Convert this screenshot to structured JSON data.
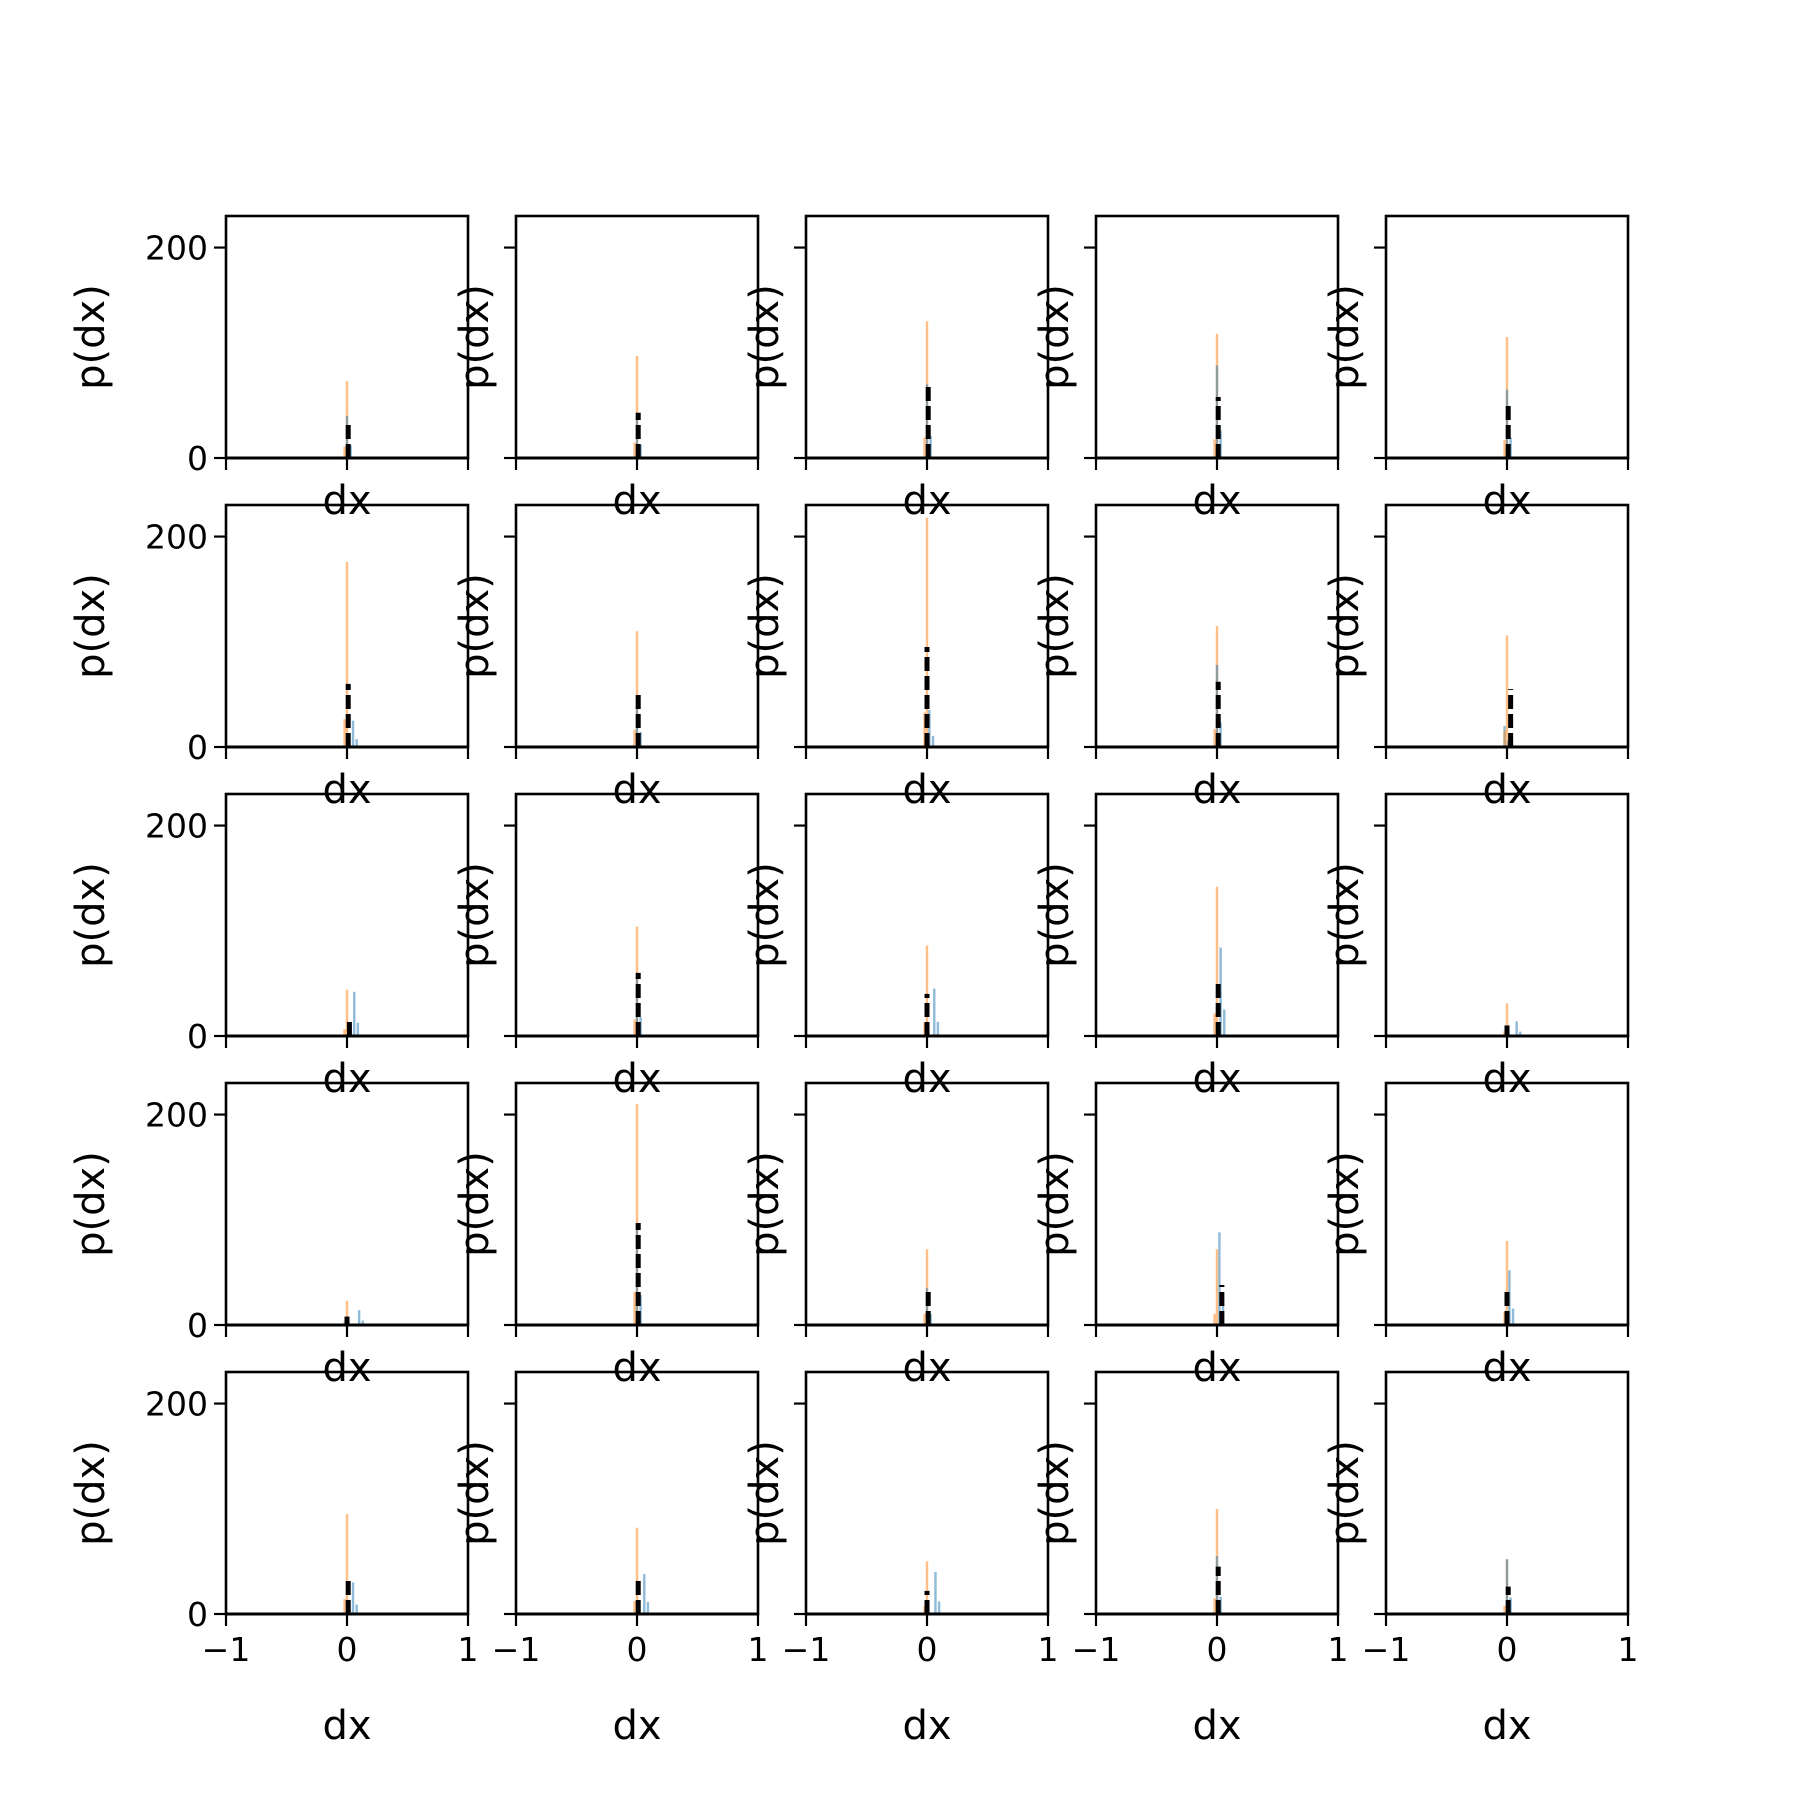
{
  "chart_data": {
    "type": "histogram-grid",
    "rows": 5,
    "cols": 5,
    "xlabel": "dx",
    "ylabel": "p(dx)",
    "xlim": [
      -1,
      1
    ],
    "ylim": [
      0,
      230
    ],
    "xticks": [
      -1,
      0,
      1
    ],
    "yticks": [
      0,
      200
    ],
    "colors": {
      "blue": "#1f77b4",
      "orange": "#ff7f0e",
      "black": "#000000"
    },
    "bin_width": 0.02,
    "panels": [
      {
        "orange": 73,
        "blue": 40,
        "black": 33,
        "blue_x": 0.0,
        "black_x": 0.01
      },
      {
        "orange": 97,
        "blue": 42,
        "black": 43,
        "blue_x": 0.0,
        "black_x": 0.01
      },
      {
        "orange": 130,
        "blue": 70,
        "black": 72,
        "blue_x": 0.0,
        "black_x": 0.01
      },
      {
        "orange": 118,
        "blue": 88,
        "black": 58,
        "blue_x": 0.0,
        "black_x": 0.01
      },
      {
        "orange": 115,
        "blue": 65,
        "black": 50,
        "blue_x": 0.0,
        "black_x": 0.01
      },
      {
        "orange": 176,
        "blue": 25,
        "black": 60,
        "blue_x": 0.05,
        "black_x": 0.01
      },
      {
        "orange": 110,
        "blue": 48,
        "black": 52,
        "blue_x": 0.0,
        "black_x": 0.01
      },
      {
        "orange": 218,
        "blue": 35,
        "black": 95,
        "blue_x": 0.02,
        "black_x": 0.0
      },
      {
        "orange": 115,
        "blue": 78,
        "black": 62,
        "blue_x": 0.0,
        "black_x": 0.01
      },
      {
        "orange": 106,
        "blue": 20,
        "black": 55,
        "blue_x": -0.02,
        "black_x": 0.03
      },
      {
        "orange": 44,
        "blue": 42,
        "black": 18,
        "blue_x": 0.06,
        "black_x": 0.02
      },
      {
        "orange": 104,
        "blue": 60,
        "black": 60,
        "blue_x": 0.0,
        "black_x": 0.01
      },
      {
        "orange": 86,
        "blue": 45,
        "black": 40,
        "blue_x": 0.06,
        "black_x": 0.0
      },
      {
        "orange": 142,
        "blue": 84,
        "black": 52,
        "blue_x": 0.03,
        "black_x": 0.01
      },
      {
        "orange": 31,
        "blue": 14,
        "black": 10,
        "blue_x": 0.08,
        "black_x": 0.0
      },
      {
        "orange": 23,
        "blue": 14,
        "black": 8,
        "blue_x": 0.1,
        "black_x": 0.0
      },
      {
        "orange": 210,
        "blue": 95,
        "black": 97,
        "blue_x": 0.0,
        "black_x": 0.01
      },
      {
        "orange": 72,
        "blue": 35,
        "black": 36,
        "blue_x": 0.0,
        "black_x": 0.01
      },
      {
        "orange": 72,
        "blue": 88,
        "black": 38,
        "blue_x": 0.02,
        "black_x": 0.04
      },
      {
        "orange": 80,
        "blue": 52,
        "black": 33,
        "blue_x": 0.02,
        "black_x": 0.0
      },
      {
        "orange": 95,
        "blue": 30,
        "black": 35,
        "blue_x": 0.05,
        "black_x": 0.01
      },
      {
        "orange": 82,
        "blue": 38,
        "black": 35,
        "blue_x": 0.06,
        "black_x": 0.01
      },
      {
        "orange": 50,
        "blue": 40,
        "black": 22,
        "blue_x": 0.07,
        "black_x": 0.0
      },
      {
        "orange": 100,
        "blue": 55,
        "black": 45,
        "blue_x": 0.0,
        "black_x": 0.01
      },
      {
        "orange": 52,
        "blue": 52,
        "black": 26,
        "blue_x": 0.0,
        "black_x": 0.01
      }
    ]
  }
}
